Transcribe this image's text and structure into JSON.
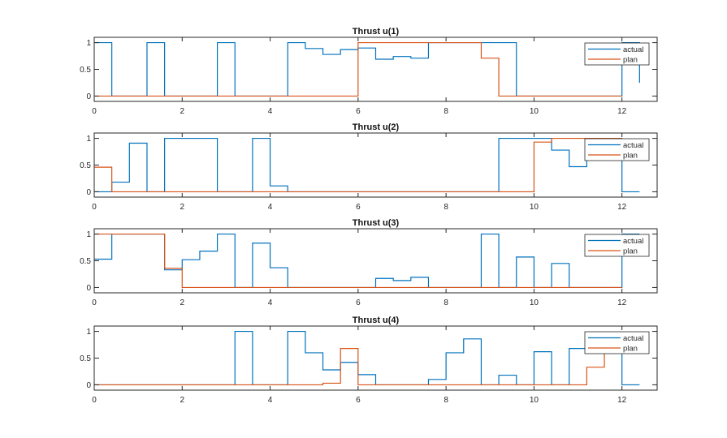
{
  "colors": {
    "actual": "#0072BD",
    "plan": "#D95319",
    "axis": "#262626"
  },
  "chart_data": [
    {
      "type": "line",
      "style": "stairs",
      "title": "Thrust u(1)",
      "xlabel": "",
      "ylabel": "",
      "xlim": [
        0,
        12.8
      ],
      "ylim": [
        -0.1,
        1.1
      ],
      "xticks": [
        0,
        2,
        4,
        6,
        8,
        10,
        12
      ],
      "xtick_labels": [
        "0",
        "2",
        "4",
        "6",
        "8",
        "10",
        "12"
      ],
      "yticks": [
        0,
        0.5,
        1
      ],
      "ytick_labels": [
        "0",
        "0.5",
        "1"
      ],
      "legend": {
        "entries": [
          "actual",
          "plan"
        ],
        "position": "top-right"
      },
      "series": [
        {
          "name": "actual",
          "x_start": 0,
          "x_step": 0.4,
          "values": [
            1,
            0,
            0,
            1,
            0,
            0,
            0,
            1,
            0,
            0,
            0,
            1,
            0.89,
            0.78,
            0.87,
            0.9,
            0.69,
            0.74,
            0.71,
            1,
            1,
            1,
            1,
            1,
            0,
            0,
            0,
            0,
            0,
            0,
            1,
            0.25
          ]
        },
        {
          "name": "plan",
          "x_start": 0,
          "x_step": 0.4,
          "values": [
            0,
            0,
            0,
            0,
            0,
            0,
            0,
            0,
            0,
            0,
            0,
            0,
            0,
            0,
            0,
            1,
            1,
            1,
            1,
            1,
            1,
            1,
            0.71,
            0,
            0,
            0,
            0,
            0,
            0,
            0,
            0
          ]
        }
      ]
    },
    {
      "type": "line",
      "style": "stairs",
      "title": "Thrust u(2)",
      "xlabel": "",
      "ylabel": "",
      "xlim": [
        0,
        12.8
      ],
      "ylim": [
        -0.1,
        1.1
      ],
      "xticks": [
        0,
        2,
        4,
        6,
        8,
        10,
        12
      ],
      "xtick_labels": [
        "0",
        "2",
        "4",
        "6",
        "8",
        "10",
        "12"
      ],
      "yticks": [
        0,
        0.5,
        1
      ],
      "ytick_labels": [
        "0",
        "0.5",
        "1"
      ],
      "legend": {
        "entries": [
          "actual",
          "plan"
        ],
        "position": "top-right"
      },
      "series": [
        {
          "name": "actual",
          "x_start": 0,
          "x_step": 0.4,
          "values": [
            0,
            0.18,
            0.91,
            0,
            1,
            1,
            1,
            0,
            0,
            1,
            0.11,
            0,
            0,
            0,
            0,
            0,
            0,
            0,
            0,
            0,
            0,
            0,
            0,
            1,
            1,
            1,
            0.78,
            0.47,
            1,
            1,
            0,
            0
          ]
        },
        {
          "name": "plan",
          "x_start": 0,
          "x_step": 0.4,
          "values": [
            0.46,
            0,
            0,
            0,
            0,
            0,
            0,
            0,
            0,
            0,
            0,
            0,
            0,
            0,
            0,
            0,
            0,
            0,
            0,
            0,
            0,
            0,
            0,
            0,
            0,
            0.93,
            1,
            1,
            1,
            1,
            1
          ]
        }
      ]
    },
    {
      "type": "line",
      "style": "stairs",
      "title": "Thrust u(3)",
      "xlabel": "",
      "ylabel": "",
      "xlim": [
        0,
        12.8
      ],
      "ylim": [
        -0.1,
        1.1
      ],
      "xticks": [
        0,
        2,
        4,
        6,
        8,
        10,
        12
      ],
      "xtick_labels": [
        "0",
        "2",
        "4",
        "6",
        "8",
        "10",
        "12"
      ],
      "yticks": [
        0,
        0.5,
        1
      ],
      "ytick_labels": [
        "0",
        "0.5",
        "1"
      ],
      "legend": {
        "entries": [
          "actual",
          "plan"
        ],
        "position": "top-right"
      },
      "series": [
        {
          "name": "actual",
          "x_start": 0,
          "x_step": 0.4,
          "values": [
            0.53,
            1,
            1,
            1,
            0.33,
            0.52,
            0.68,
            1,
            0,
            0.83,
            0.37,
            0,
            0,
            0,
            0,
            0,
            0.17,
            0.13,
            0.19,
            0,
            0,
            0,
            1,
            0,
            0.57,
            0,
            0.45,
            0,
            0,
            0,
            1,
            1
          ]
        },
        {
          "name": "plan",
          "x_start": 0,
          "x_step": 0.4,
          "values": [
            1,
            1,
            1,
            1,
            0.36,
            0,
            0,
            0,
            0,
            0,
            0,
            0,
            0,
            0,
            0,
            0,
            0,
            0,
            0,
            0,
            0,
            0,
            0,
            0,
            0,
            0,
            0,
            0,
            0,
            0,
            0
          ]
        }
      ]
    },
    {
      "type": "line",
      "style": "stairs",
      "title": "Thrust u(4)",
      "xlabel": "",
      "ylabel": "",
      "xlim": [
        0,
        12.8
      ],
      "ylim": [
        -0.1,
        1.1
      ],
      "xticks": [
        0,
        2,
        4,
        6,
        8,
        10,
        12
      ],
      "xtick_labels": [
        "0",
        "2",
        "4",
        "6",
        "8",
        "10",
        "12"
      ],
      "yticks": [
        0,
        0.5,
        1
      ],
      "ytick_labels": [
        "0",
        "0.5",
        "1"
      ],
      "legend": {
        "entries": [
          "actual",
          "plan"
        ],
        "position": "top-right"
      },
      "series": [
        {
          "name": "actual",
          "x_start": 0,
          "x_step": 0.4,
          "values": [
            0,
            0,
            0,
            0,
            0,
            0,
            0,
            0,
            1,
            0,
            0,
            1,
            0.6,
            0.28,
            0.42,
            0.19,
            0,
            0,
            0,
            0.1,
            0.6,
            0.86,
            0,
            0.18,
            0,
            0.62,
            0,
            0.68,
            0.68,
            0.68,
            0,
            0
          ]
        },
        {
          "name": "plan",
          "x_start": 0,
          "x_step": 0.4,
          "values": [
            0,
            0,
            0,
            0,
            0,
            0,
            0,
            0,
            0,
            0,
            0,
            0,
            0,
            0.03,
            0.68,
            0,
            0,
            0,
            0,
            0,
            0,
            0,
            0,
            0,
            0,
            0,
            0,
            0,
            0.33,
            0.75,
            0.75
          ]
        }
      ]
    }
  ]
}
